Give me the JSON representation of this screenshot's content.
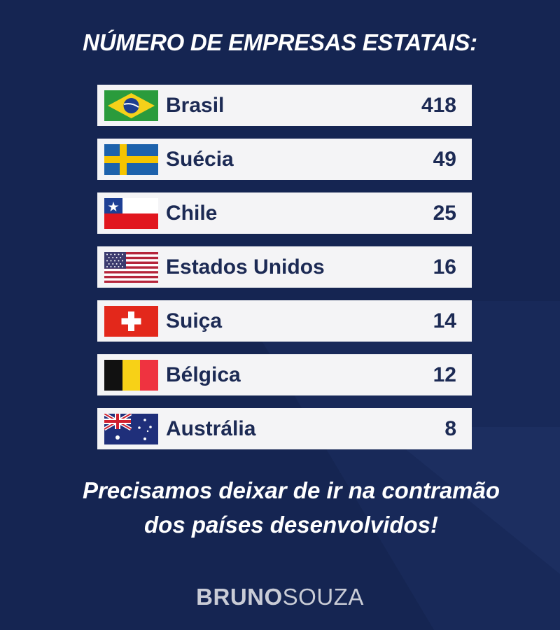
{
  "title": "NÚMERO DE EMPRESAS ESTATAIS:",
  "rows": [
    {
      "country": "Brasil",
      "count": "418",
      "flag": "brazil-flag-icon"
    },
    {
      "country": "Suécia",
      "count": "49",
      "flag": "sweden-flag-icon"
    },
    {
      "country": "Chile",
      "count": "25",
      "flag": "chile-flag-icon"
    },
    {
      "country": "Estados Unidos",
      "count": "16",
      "flag": "usa-flag-icon"
    },
    {
      "country": "Suiça",
      "count": "14",
      "flag": "switzerland-flag-icon"
    },
    {
      "country": "Bélgica",
      "count": "12",
      "flag": "belgium-flag-icon"
    },
    {
      "country": "Austrália",
      "count": "8",
      "flag": "australia-flag-icon"
    }
  ],
  "tagline": {
    "line1": "Precisamos deixar de ir na contramão",
    "line2": "dos países desenvolvidos!"
  },
  "brand": {
    "part1": "BRUNO",
    "part2": "SOUZA"
  },
  "colors": {
    "background": "#152552",
    "row_background": "#f4f4f6",
    "row_text": "#1c2a54"
  }
}
